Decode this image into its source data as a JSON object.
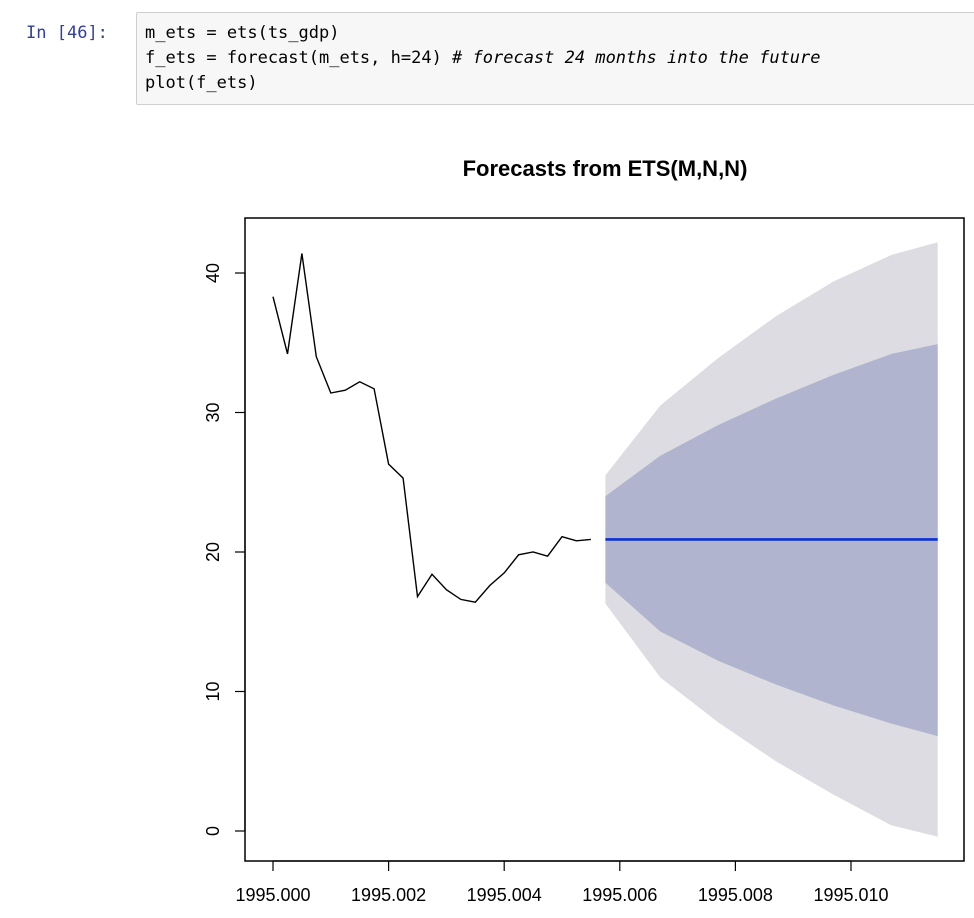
{
  "cell": {
    "prompt_prefix": "In [",
    "execution_count": "46",
    "prompt_suffix": "]:",
    "code_lines": [
      {
        "code": "m_ets = ets(ts_gdp)",
        "comment": ""
      },
      {
        "code": "f_ets = forecast(m_ets, h=24) ",
        "comment": "# forecast 24 months into the future"
      },
      {
        "code": "plot(f_ets)",
        "comment": ""
      }
    ]
  },
  "chart_data": {
    "type": "line",
    "title": "Forecasts from ETS(M,N,N)",
    "xlabel": "",
    "ylabel": "",
    "xlim": [
      1995.0,
      1995.0116
    ],
    "ylim": [
      -0.5,
      43.5
    ],
    "x_ticks": [
      1995.0,
      1995.002,
      1995.004,
      1995.006,
      1995.008,
      1995.01
    ],
    "x_tick_labels": [
      "1995.000",
      "1995.002",
      "1995.004",
      "1995.006",
      "1995.008",
      "1995.010"
    ],
    "y_ticks": [
      0,
      10,
      20,
      30,
      40
    ],
    "y_tick_labels": [
      "0",
      "10",
      "20",
      "30",
      "40"
    ],
    "grid": false,
    "colors": {
      "history": "#000000",
      "forecast": "#0a2fd6",
      "band80": "#b0b4cf",
      "band95": "#dcdce2"
    },
    "history": {
      "x": [
        1995.0,
        1995.00025,
        1995.0005,
        1995.00075,
        1995.001,
        1995.00125,
        1995.0015,
        1995.00175,
        1995.002,
        1995.00225,
        1995.0025,
        1995.00275,
        1995.003,
        1995.00325,
        1995.0035,
        1995.00375,
        1995.004,
        1995.00425,
        1995.0045,
        1995.00475,
        1995.005,
        1995.00525,
        1995.0055
      ],
      "y": [
        38.3,
        34.2,
        41.4,
        34.0,
        31.4,
        31.6,
        32.2,
        31.7,
        26.3,
        25.3,
        16.8,
        18.4,
        17.3,
        16.6,
        16.4,
        17.6,
        18.5,
        19.8,
        20.0,
        19.7,
        21.1,
        20.8,
        20.9
      ]
    },
    "forecast": {
      "x": [
        1995.00575,
        1995.0067,
        1995.0077,
        1995.0087,
        1995.0097,
        1995.0107,
        1995.0115
      ],
      "mean": [
        20.9,
        20.9,
        20.9,
        20.9,
        20.9,
        20.9,
        20.9
      ],
      "lower80": [
        17.8,
        14.3,
        12.2,
        10.5,
        9.0,
        7.7,
        6.8
      ],
      "upper80": [
        24.0,
        26.9,
        29.1,
        31.0,
        32.7,
        34.2,
        34.9
      ],
      "lower95": [
        16.3,
        11.0,
        7.8,
        5.0,
        2.6,
        0.4,
        -0.4
      ],
      "upper95": [
        25.5,
        30.5,
        33.9,
        36.9,
        39.4,
        41.3,
        42.2
      ]
    }
  }
}
